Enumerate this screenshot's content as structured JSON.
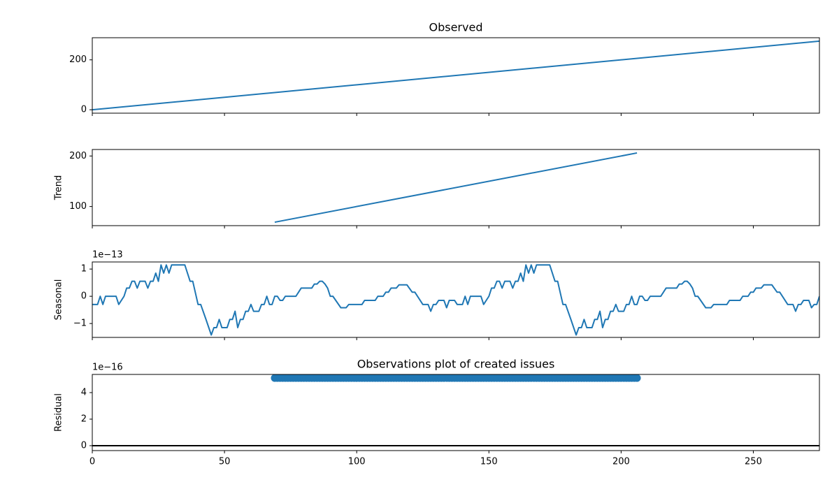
{
  "chart_data": [
    {
      "type": "line",
      "title": "Observed",
      "color": "#1f77b4",
      "x": [
        0,
        275
      ],
      "values": [
        0,
        275
      ],
      "xlim": [
        0,
        275
      ],
      "xticks": [
        0,
        50,
        100,
        150,
        200,
        250
      ],
      "ylim": [
        -13.75,
        288.75
      ],
      "yticks": [
        0,
        200
      ]
    },
    {
      "type": "line",
      "ylabel": "Trend",
      "color": "#1f77b4",
      "x": [
        69,
        206
      ],
      "values": [
        69,
        206
      ],
      "xlim": [
        0,
        275
      ],
      "xticks": [
        0,
        50,
        100,
        150,
        200,
        250
      ],
      "ylim": [
        62.15,
        212.85
      ],
      "yticks": [
        100,
        200
      ]
    },
    {
      "type": "line",
      "ylabel": "Seasonal",
      "offset_label": "1e−13",
      "color": "#1f77b4",
      "x": [
        0,
        2,
        3,
        4,
        5,
        9,
        10,
        12,
        13,
        14,
        15,
        16,
        17,
        18,
        20,
        21,
        22,
        23,
        24,
        25,
        26,
        27,
        28,
        29,
        30,
        35,
        37,
        38,
        40,
        41,
        43,
        45,
        46,
        47,
        48,
        49,
        51,
        52,
        53,
        54,
        55,
        56,
        57,
        58,
        59,
        60,
        61,
        63,
        64,
        65,
        66,
        67,
        68,
        69,
        70,
        71,
        72,
        73,
        77,
        78,
        79,
        83,
        84,
        85,
        86,
        87,
        88,
        89,
        90,
        91,
        94,
        96,
        97,
        102,
        103,
        107,
        108,
        110,
        111,
        112,
        113,
        115,
        116,
        119,
        121,
        122,
        124,
        125,
        127,
        128,
        129,
        130,
        131,
        133,
        134,
        135,
        137,
        138,
        140,
        141,
        142,
        143,
        147,
        148,
        150,
        151,
        152,
        153,
        154,
        155,
        156,
        158,
        159,
        160,
        161,
        162,
        163,
        164,
        165,
        166,
        167,
        168,
        173,
        175,
        176,
        178,
        179,
        181,
        183,
        184,
        185,
        186,
        187,
        189,
        190,
        191,
        192,
        193,
        194,
        195,
        196,
        197,
        198,
        199,
        201,
        202,
        203,
        204,
        205,
        206,
        207,
        208,
        209,
        210,
        211,
        215,
        216,
        217,
        221,
        222,
        223,
        224,
        225,
        226,
        227,
        228,
        229,
        232,
        234,
        235,
        240,
        241,
        245,
        246,
        248,
        249,
        250,
        251,
        253,
        254,
        257,
        259,
        260,
        262,
        263,
        265,
        266,
        267,
        268,
        269,
        271,
        272,
        273,
        274,
        275
      ],
      "values": [
        -0.3,
        -0.3,
        0,
        -0.3,
        0,
        0,
        -0.3,
        0,
        0.3,
        0.3,
        0.55,
        0.55,
        0.3,
        0.55,
        0.55,
        0.3,
        0.55,
        0.55,
        0.85,
        0.55,
        1.15,
        0.85,
        1.15,
        0.85,
        1.15,
        1.15,
        0.55,
        0.55,
        -0.3,
        -0.3,
        -0.85,
        -1.42,
        -1.15,
        -1.15,
        -0.85,
        -1.15,
        -1.15,
        -0.85,
        -0.85,
        -0.55,
        -1.15,
        -0.85,
        -0.85,
        -0.55,
        -0.55,
        -0.3,
        -0.55,
        -0.55,
        -0.3,
        -0.3,
        0,
        -0.3,
        -0.3,
        0,
        0,
        -0.15,
        -0.15,
        0,
        0,
        0.15,
        0.3,
        0.3,
        0.45,
        0.45,
        0.55,
        0.55,
        0.45,
        0.3,
        0,
        0,
        -0.42,
        -0.42,
        -0.3,
        -0.3,
        -0.15,
        -0.15,
        0,
        0,
        0.15,
        0.15,
        0.3,
        0.3,
        0.42,
        0.42,
        0.15,
        0.15,
        -0.15,
        -0.3,
        -0.3,
        -0.55,
        -0.3,
        -0.3,
        -0.15,
        -0.15,
        -0.42,
        -0.15,
        -0.15,
        -0.3,
        -0.3,
        0,
        -0.3,
        0,
        0,
        -0.3,
        0,
        0.3,
        0.3,
        0.55,
        0.55,
        0.3,
        0.55,
        0.55,
        0.3,
        0.55,
        0.55,
        0.85,
        0.55,
        1.15,
        0.85,
        1.15,
        0.85,
        1.15,
        1.15,
        0.55,
        0.55,
        -0.3,
        -0.3,
        -0.85,
        -1.42,
        -1.15,
        -1.15,
        -0.85,
        -1.15,
        -1.15,
        -0.85,
        -0.85,
        -0.55,
        -1.15,
        -0.85,
        -0.85,
        -0.55,
        -0.55,
        -0.3,
        -0.55,
        -0.55,
        -0.3,
        -0.3,
        0,
        -0.3,
        -0.3,
        0,
        0,
        -0.15,
        -0.15,
        0,
        0,
        0.15,
        0.3,
        0.3,
        0.45,
        0.45,
        0.55,
        0.55,
        0.45,
        0.3,
        0,
        0,
        -0.42,
        -0.42,
        -0.3,
        -0.3,
        -0.15,
        -0.15,
        0,
        0,
        0.15,
        0.15,
        0.3,
        0.3,
        0.42,
        0.42,
        0.15,
        0.15,
        -0.15,
        -0.3,
        -0.3,
        -0.55,
        -0.3,
        -0.3,
        -0.15,
        -0.15,
        -0.42,
        -0.3,
        -0.3,
        0
      ],
      "xlim": [
        0,
        275
      ],
      "xticks": [
        0,
        50,
        100,
        150,
        200,
        250
      ],
      "ylim": [
        -1.51,
        1.26
      ],
      "yticks": [
        {
          "value": -1,
          "label": "−1"
        },
        0,
        1
      ]
    },
    {
      "type": "scatter",
      "title": "Observations plot of created issues",
      "ylabel": "Residual",
      "offset_label": "1e−16",
      "color": "#1f77b4",
      "x": [
        69,
        70,
        71,
        72,
        73,
        74,
        75,
        76,
        77,
        78,
        79,
        80,
        81,
        82,
        83,
        84,
        85,
        86,
        87,
        88,
        89,
        90,
        91,
        92,
        93,
        94,
        95,
        96,
        97,
        98,
        99,
        100,
        101,
        102,
        103,
        104,
        105,
        106,
        107,
        108,
        109,
        110,
        111,
        112,
        113,
        114,
        115,
        116,
        117,
        118,
        119,
        120,
        121,
        122,
        123,
        124,
        125,
        126,
        127,
        128,
        129,
        130,
        131,
        132,
        133,
        134,
        135,
        136,
        137,
        138,
        139,
        140,
        141,
        142,
        143,
        144,
        145,
        146,
        147,
        148,
        149,
        150,
        151,
        152,
        153,
        154,
        155,
        156,
        157,
        158,
        159,
        160,
        161,
        162,
        163,
        164,
        165,
        166,
        167,
        168,
        169,
        170,
        171,
        172,
        173,
        174,
        175,
        176,
        177,
        178,
        179,
        180,
        181,
        182,
        183,
        184,
        185,
        186,
        187,
        188,
        189,
        190,
        191,
        192,
        193,
        194,
        195,
        196,
        197,
        198,
        199,
        200,
        201,
        202,
        203,
        204,
        205,
        206
      ],
      "values": [
        5.1,
        5.1,
        5.1,
        5.1,
        5.1,
        5.1,
        5.1,
        5.1,
        5.1,
        5.1,
        5.1,
        5.1,
        5.1,
        5.1,
        5.1,
        5.1,
        5.1,
        5.1,
        5.1,
        5.1,
        5.1,
        5.1,
        5.1,
        5.1,
        5.1,
        5.1,
        5.1,
        5.1,
        5.1,
        5.1,
        5.1,
        5.1,
        5.1,
        5.1,
        5.1,
        5.1,
        5.1,
        5.1,
        5.1,
        5.1,
        5.1,
        5.1,
        5.1,
        5.1,
        5.1,
        5.1,
        5.1,
        5.1,
        5.1,
        5.1,
        5.1,
        5.1,
        5.1,
        5.1,
        5.1,
        5.1,
        5.1,
        5.1,
        5.1,
        5.1,
        5.1,
        5.1,
        5.1,
        5.1,
        5.1,
        5.1,
        5.1,
        5.1,
        5.1,
        5.1,
        5.1,
        5.1,
        5.1,
        5.1,
        5.1,
        5.1,
        5.1,
        5.1,
        5.1,
        5.1,
        5.1,
        5.1,
        5.1,
        5.1,
        5.1,
        5.1,
        5.1,
        5.1,
        5.1,
        5.1,
        5.1,
        5.1,
        5.1,
        5.1,
        5.1,
        5.1,
        5.1,
        5.1,
        5.1,
        5.1,
        5.1,
        5.1,
        5.1,
        5.1,
        5.1,
        5.1,
        5.1,
        5.1,
        5.1,
        5.1,
        5.1,
        5.1,
        5.1,
        5.1,
        5.1,
        5.1,
        5.1,
        5.1,
        5.1,
        5.1,
        5.1,
        5.1,
        5.1,
        5.1,
        5.1,
        5.1,
        5.1,
        5.1,
        5.1,
        5.1,
        5.1,
        5.1,
        5.1,
        5.1,
        5.1,
        5.1,
        5.1,
        5.1
      ],
      "hline": 0,
      "hline_color": "#000000",
      "xlim": [
        0,
        275
      ],
      "xticks": [
        0,
        50,
        100,
        150,
        200,
        250
      ],
      "ylim": [
        -0.37,
        5.37
      ],
      "yticks": [
        0,
        2,
        4
      ]
    }
  ]
}
